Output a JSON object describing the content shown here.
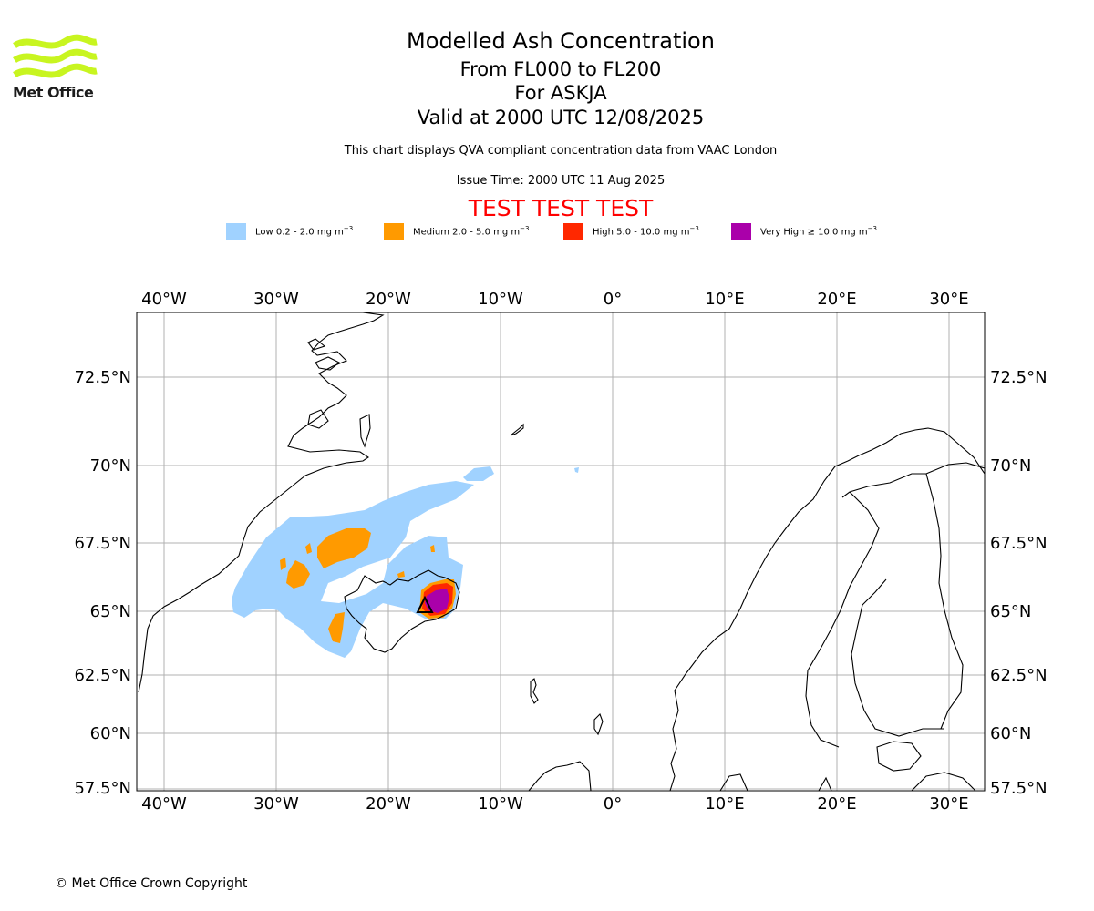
{
  "branding": {
    "logo_text": "Met Office",
    "logo_color": "#c8f520"
  },
  "header": {
    "title": "Modelled Ash Concentration",
    "flight_levels": "From FL000 to FL200",
    "volcano": "For ASKJA",
    "valid_time": "Valid at 2000 UTC 12/08/2025",
    "description": "This chart displays QVA compliant concentration data from VAAC London",
    "issue_time": "Issue Time: 2000 UTC 11 Aug 2025",
    "test_banner": "TEST TEST TEST",
    "test_banner_color": "#ff0000"
  },
  "legend": [
    {
      "label": "Low 0.2 - 2.0 mg m",
      "unit_exp": "−3",
      "color": "#a0d2ff"
    },
    {
      "label": "Medium 2.0 - 5.0 mg m",
      "unit_exp": "−3",
      "color": "#ff9a00"
    },
    {
      "label": "High 5.0 - 10.0 mg m",
      "unit_exp": "−3",
      "color": "#ff2800"
    },
    {
      "label": "Very High  ≥  10.0 mg m",
      "unit_exp": "−3",
      "color": "#aa00aa"
    }
  ],
  "map": {
    "longitude_labels": [
      "40°W",
      "30°W",
      "20°W",
      "10°W",
      "0°",
      "10°E",
      "20°E",
      "30°E"
    ],
    "latitude_labels": [
      "72.5°N",
      "70°N",
      "67.5°N",
      "65°N",
      "62.5°N",
      "60°N",
      "57.5°N"
    ],
    "grid": true,
    "volcano_marker": "black triangle at Askja",
    "extent": {
      "lon_min": -42.5,
      "lon_max": 33.0,
      "lat_min": 57.4,
      "lat_max": 74.6
    }
  },
  "footer": {
    "copyright": "© Met Office Crown Copyright"
  }
}
